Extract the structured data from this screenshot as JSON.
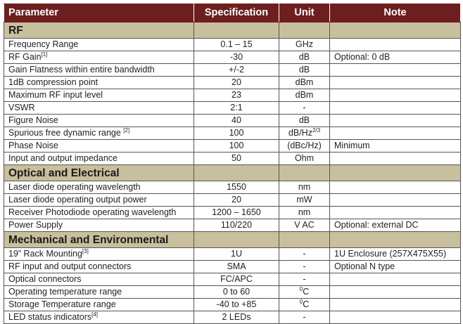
{
  "header": {
    "parameter": "Parameter",
    "specification": "Specification",
    "unit": "Unit",
    "note": "Note"
  },
  "sections": [
    {
      "title": "RF",
      "rows": [
        {
          "param": "Frequency Range",
          "sup": "",
          "spec": "0.1 – 15",
          "unit_pre": "",
          "unit": "GHz",
          "unit_sup": "",
          "note": ""
        },
        {
          "param": "RF Gain",
          "sup": "[1]",
          "spec": "-30",
          "unit_pre": "",
          "unit": "dB",
          "unit_sup": "",
          "note": "Optional: 0 dB"
        },
        {
          "param": "Gain Flatness within entire bandwidth",
          "sup": "",
          "spec": "+/-2",
          "unit_pre": "",
          "unit": "dB",
          "unit_sup": "",
          "note": ""
        },
        {
          "param": "1dB compression point",
          "sup": "",
          "spec": "20",
          "unit_pre": "",
          "unit": "dBm",
          "unit_sup": "",
          "note": ""
        },
        {
          "param": "Maximum RF input level",
          "sup": "",
          "spec": "23",
          "unit_pre": "",
          "unit": "dBm",
          "unit_sup": "",
          "note": ""
        },
        {
          "param": "VSWR",
          "sup": "",
          "spec": "2:1",
          "unit_pre": "",
          "unit": "-",
          "unit_sup": "",
          "note": ""
        },
        {
          "param": "Figure Noise",
          "sup": "",
          "spec": "40",
          "unit_pre": "",
          "unit": "dB",
          "unit_sup": "",
          "note": ""
        },
        {
          "param": "Spurious free dynamic range ",
          "sup": "[2]",
          "spec": "100",
          "unit_pre": "",
          "unit": "dB/Hz",
          "unit_sup": "2/3",
          "note": ""
        },
        {
          "param": "Phase Noise",
          "sup": "",
          "spec": "100",
          "unit_pre": "",
          "unit": "(dBc/Hz)",
          "unit_sup": "",
          "note": "Minimum"
        },
        {
          "param": "Input and output impedance",
          "sup": "",
          "spec": "50",
          "unit_pre": "",
          "unit": "Ohm",
          "unit_sup": "",
          "note": ""
        }
      ]
    },
    {
      "title": "Optical and Electrical",
      "rows": [
        {
          "param": "Laser diode operating wavelength",
          "sup": "",
          "spec": "1550",
          "unit_pre": "",
          "unit": "nm",
          "unit_sup": "",
          "note": ""
        },
        {
          "param": "Laser diode operating output power",
          "sup": "",
          "spec": "20",
          "unit_pre": "",
          "unit": "mW",
          "unit_sup": "",
          "note": ""
        },
        {
          "param": "Receiver Photodiode operating wavelength",
          "sup": "",
          "spec": "1200 – 1650",
          "unit_pre": "",
          "unit": "nm",
          "unit_sup": "",
          "note": ""
        },
        {
          "param": "Power Supply",
          "sup": "",
          "spec": "110/220",
          "unit_pre": "",
          "unit": "V AC",
          "unit_sup": "",
          "note": "Optional: external DC"
        }
      ]
    },
    {
      "title": "Mechanical and Environmental",
      "rows": [
        {
          "param": "19” Rack Mounting",
          "sup": "[3]",
          "spec": "1U",
          "unit_pre": "",
          "unit": "-",
          "unit_sup": "",
          "note": "1U Enclosure (257X475X55)"
        },
        {
          "param": "RF input and output connectors",
          "sup": "",
          "spec": "SMA",
          "unit_pre": "",
          "unit": "-",
          "unit_sup": "",
          "note": "Optional N type"
        },
        {
          "param": "Optical connectors",
          "sup": "",
          "spec": "FC/APC",
          "unit_pre": "",
          "unit": "-",
          "unit_sup": "",
          "note": ""
        },
        {
          "param": "Operating temperature range",
          "sup": "",
          "spec": "0 to 60",
          "unit_pre": "0",
          "unit": "C",
          "unit_sup": "",
          "note": ""
        },
        {
          "param": "Storage Temperature range",
          "sup": "",
          "spec": "-40 to +85",
          "unit_pre": "0",
          "unit": "C",
          "unit_sup": "",
          "note": ""
        },
        {
          "param": "LED status indicators",
          "sup": "[4]",
          "spec": "2 LEDs",
          "unit_pre": "",
          "unit": "-",
          "unit_sup": "",
          "note": ""
        }
      ]
    }
  ]
}
